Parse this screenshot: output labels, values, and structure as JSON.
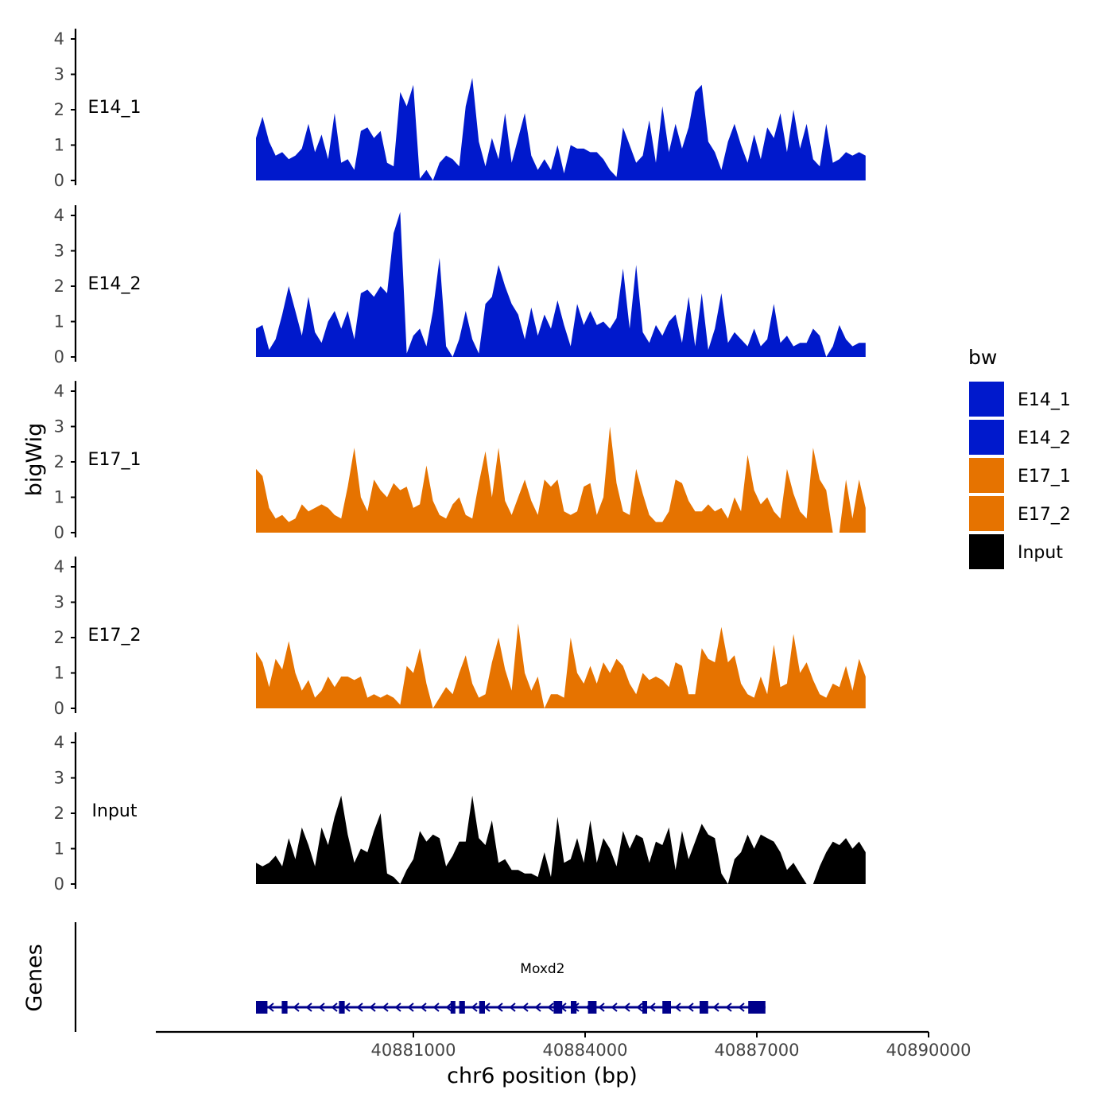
{
  "chart_data": {
    "type": "area",
    "ylabel": "bigWig",
    "genes_label": "Genes",
    "xlabel": "chr6 position (bp)",
    "xlim": [
      40876500,
      40890000
    ],
    "data_range": [
      40878250,
      40888900
    ],
    "x_ticks": [
      40881000,
      40884000,
      40887000,
      40890000
    ],
    "x_tick_labels": [
      "40881000",
      "40884000",
      "40887000",
      "40890000"
    ],
    "ylim": [
      0,
      4.2
    ],
    "y_ticks": [
      0,
      1,
      2,
      3,
      4
    ],
    "y_tick_labels": [
      "0",
      "1",
      "2",
      "3",
      "4"
    ],
    "legend": {
      "title": "bw",
      "position": "right",
      "entries": [
        {
          "label": "E14_1",
          "color": "#0019cc"
        },
        {
          "label": "E14_2",
          "color": "#0019cc"
        },
        {
          "label": "E17_1",
          "color": "#e67300"
        },
        {
          "label": "E17_2",
          "color": "#e67300"
        },
        {
          "label": "Input",
          "color": "#000000"
        }
      ]
    },
    "series": [
      {
        "name": "E14_1",
        "color": "#0019cc",
        "values": [
          1.2,
          1.8,
          1.1,
          0.7,
          0.8,
          0.6,
          0.7,
          0.9,
          1.6,
          0.8,
          1.3,
          0.6,
          1.9,
          0.5,
          0.6,
          0.3,
          1.4,
          1.5,
          1.2,
          1.4,
          0.5,
          0.4,
          2.5,
          2.1,
          2.7,
          0.05,
          0.3,
          0.0,
          0.5,
          0.7,
          0.6,
          0.4,
          2.1,
          2.9,
          1.1,
          0.4,
          1.2,
          0.6,
          1.9,
          0.5,
          1.2,
          1.9,
          0.7,
          0.3,
          0.6,
          0.3,
          1.0,
          0.2,
          1.0,
          0.9,
          0.9,
          0.8,
          0.8,
          0.6,
          0.3,
          0.1,
          1.5,
          1.0,
          0.5,
          0.7,
          1.7,
          0.5,
          2.1,
          0.8,
          1.6,
          0.9,
          1.5,
          2.5,
          2.7,
          1.1,
          0.8,
          0.3,
          1.1,
          1.6,
          1.0,
          0.5,
          1.3,
          0.6,
          1.5,
          1.2,
          1.9,
          0.8,
          2.0,
          0.9,
          1.6,
          0.6,
          0.4,
          1.6,
          0.5,
          0.6,
          0.8,
          0.7,
          0.8,
          0.7
        ]
      },
      {
        "name": "E14_2",
        "color": "#0019cc",
        "values": [
          0.8,
          0.9,
          0.2,
          0.5,
          1.2,
          2.0,
          1.3,
          0.6,
          1.7,
          0.7,
          0.4,
          1.0,
          1.3,
          0.8,
          1.3,
          0.5,
          1.8,
          1.9,
          1.7,
          2.0,
          1.8,
          3.5,
          4.1,
          0.1,
          0.6,
          0.8,
          0.3,
          1.3,
          2.8,
          0.3,
          0.0,
          0.5,
          1.3,
          0.5,
          0.1,
          1.5,
          1.7,
          2.6,
          2.0,
          1.5,
          1.2,
          0.5,
          1.4,
          0.6,
          1.2,
          0.8,
          1.6,
          0.9,
          0.3,
          1.5,
          0.9,
          1.3,
          0.9,
          1.0,
          0.8,
          1.1,
          2.5,
          0.8,
          2.6,
          0.7,
          0.4,
          0.9,
          0.6,
          1.0,
          1.2,
          0.4,
          1.7,
          0.3,
          1.8,
          0.2,
          0.8,
          1.8,
          0.4,
          0.7,
          0.5,
          0.3,
          0.8,
          0.3,
          0.5,
          1.5,
          0.4,
          0.6,
          0.3,
          0.4,
          0.4,
          0.8,
          0.6,
          0.0,
          0.3,
          0.9,
          0.5,
          0.3,
          0.4,
          0.4
        ]
      },
      {
        "name": "E17_1",
        "color": "#e67300",
        "values": [
          1.8,
          1.6,
          0.7,
          0.4,
          0.5,
          0.3,
          0.4,
          0.8,
          0.6,
          0.7,
          0.8,
          0.7,
          0.5,
          0.4,
          1.3,
          2.4,
          1.0,
          0.6,
          1.5,
          1.2,
          1.0,
          1.4,
          1.2,
          1.3,
          0.7,
          0.8,
          1.9,
          0.9,
          0.5,
          0.4,
          0.8,
          1.0,
          0.5,
          0.4,
          1.4,
          2.3,
          1.0,
          2.4,
          0.9,
          0.5,
          1.0,
          1.5,
          0.9,
          0.5,
          1.5,
          1.3,
          1.5,
          0.6,
          0.5,
          0.6,
          1.3,
          1.4,
          0.5,
          1.0,
          3.0,
          1.4,
          0.6,
          0.5,
          1.8,
          1.1,
          0.5,
          0.3,
          0.3,
          0.6,
          1.5,
          1.4,
          0.9,
          0.6,
          0.6,
          0.8,
          0.6,
          0.7,
          0.4,
          1.0,
          0.6,
          2.2,
          1.2,
          0.8,
          1.0,
          0.6,
          0.4,
          1.8,
          1.1,
          0.6,
          0.4,
          2.4,
          1.5,
          1.2,
          0.0,
          0.0,
          1.5,
          0.4,
          1.5,
          0.7
        ]
      },
      {
        "name": "E17_2",
        "color": "#e67300",
        "values": [
          1.6,
          1.3,
          0.6,
          1.4,
          1.1,
          1.9,
          1.0,
          0.5,
          0.8,
          0.3,
          0.5,
          0.9,
          0.6,
          0.9,
          0.9,
          0.8,
          0.9,
          0.3,
          0.4,
          0.3,
          0.4,
          0.3,
          0.1,
          1.2,
          1.0,
          1.7,
          0.7,
          0.0,
          0.3,
          0.6,
          0.4,
          1.0,
          1.5,
          0.7,
          0.3,
          0.4,
          1.3,
          2.0,
          1.1,
          0.5,
          2.4,
          1.0,
          0.5,
          0.9,
          0.0,
          0.4,
          0.4,
          0.3,
          2.0,
          1.0,
          0.7,
          1.2,
          0.7,
          1.3,
          1.0,
          1.4,
          1.2,
          0.7,
          0.4,
          1.0,
          0.8,
          0.9,
          0.8,
          0.6,
          1.3,
          1.2,
          0.4,
          0.4,
          1.7,
          1.4,
          1.3,
          2.3,
          1.3,
          1.5,
          0.7,
          0.4,
          0.3,
          0.9,
          0.4,
          1.8,
          0.6,
          0.7,
          2.1,
          1.0,
          1.3,
          0.8,
          0.4,
          0.3,
          0.7,
          0.6,
          1.2,
          0.5,
          1.4,
          0.9
        ]
      },
      {
        "name": "Input",
        "color": "#000000",
        "values": [
          0.6,
          0.5,
          0.6,
          0.8,
          0.5,
          1.3,
          0.7,
          1.6,
          1.1,
          0.5,
          1.6,
          1.1,
          1.9,
          2.5,
          1.4,
          0.6,
          1.0,
          0.9,
          1.5,
          2.0,
          0.3,
          0.2,
          0.0,
          0.4,
          0.7,
          1.5,
          1.2,
          1.4,
          1.3,
          0.5,
          0.8,
          1.2,
          1.2,
          2.5,
          1.3,
          1.1,
          1.8,
          0.6,
          0.7,
          0.4,
          0.4,
          0.3,
          0.3,
          0.2,
          0.9,
          0.2,
          1.9,
          0.6,
          0.7,
          1.3,
          0.6,
          1.8,
          0.6,
          1.3,
          1.0,
          0.5,
          1.5,
          1.0,
          1.4,
          1.3,
          0.6,
          1.2,
          1.1,
          1.6,
          0.4,
          1.5,
          0.7,
          1.2,
          1.7,
          1.4,
          1.3,
          0.3,
          0.0,
          0.7,
          0.9,
          1.4,
          1.0,
          1.4,
          1.3,
          1.2,
          0.9,
          0.4,
          0.6,
          0.3,
          0.0,
          0.0,
          0.5,
          0.9,
          1.2,
          1.1,
          1.3,
          1.0,
          1.2,
          0.9
        ]
      }
    ],
    "gene": {
      "name": "Moxd2",
      "strand": "-",
      "start": 40878250,
      "end": 40887150,
      "exons": [
        [
          40878250,
          40878450
        ],
        [
          40878700,
          40878800
        ],
        [
          40879700,
          40879800
        ],
        [
          40881650,
          40881700
        ],
        [
          40881800,
          40881900
        ],
        [
          40882150,
          40882250
        ],
        [
          40883450,
          40883600
        ],
        [
          40883750,
          40883850
        ],
        [
          40884050,
          40884200
        ],
        [
          40885000,
          40885080
        ],
        [
          40885350,
          40885500
        ],
        [
          40886000,
          40886150
        ],
        [
          40886850,
          40887150
        ]
      ]
    }
  }
}
